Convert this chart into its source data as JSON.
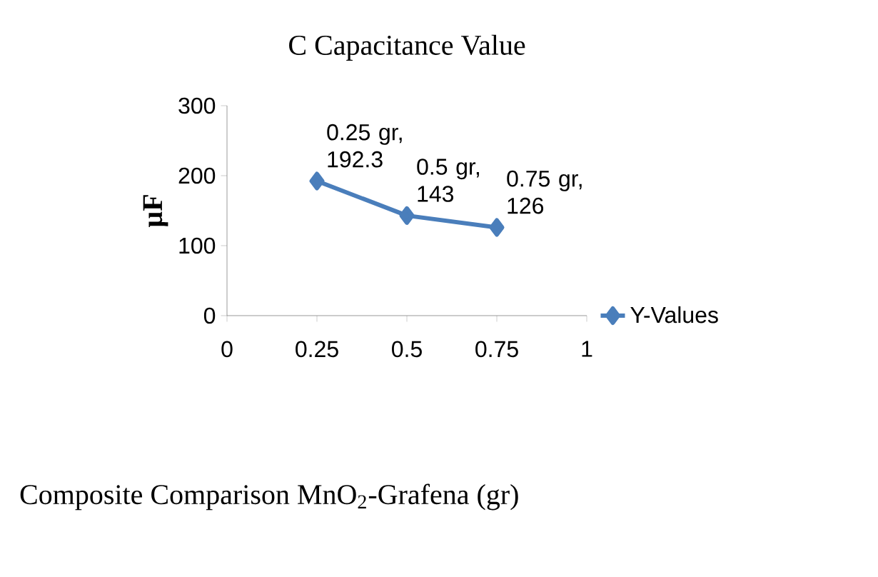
{
  "chart_data": {
    "type": "line",
    "title": "C Capacitance Value",
    "ylabel": "µF",
    "xlabel": "Composite Comparison MnO$_{2}$-Grafena (gr)",
    "x": [
      0.25,
      0.5,
      0.75
    ],
    "series": [
      {
        "name": "Y-Values",
        "color": "#4a7ebb",
        "values": [
          192.3,
          143,
          126
        ]
      }
    ],
    "xlim": [
      0,
      1
    ],
    "xticks": [
      0,
      0.25,
      0.5,
      0.75,
      1
    ],
    "ylim": [
      0,
      300
    ],
    "yticks": [
      0,
      100,
      200,
      300
    ],
    "annotations": [
      {
        "text": "0.25 gr, 192.3",
        "x": 0.25,
        "y": 192.3
      },
      {
        "text": "0.5 gr, 143",
        "x": 0.5,
        "y": 143
      },
      {
        "text": "0.75 gr, 126",
        "x": 0.75,
        "y": 126
      }
    ],
    "legend": "right",
    "marker": "diamond",
    "line_style": "solid",
    "grid": false
  }
}
